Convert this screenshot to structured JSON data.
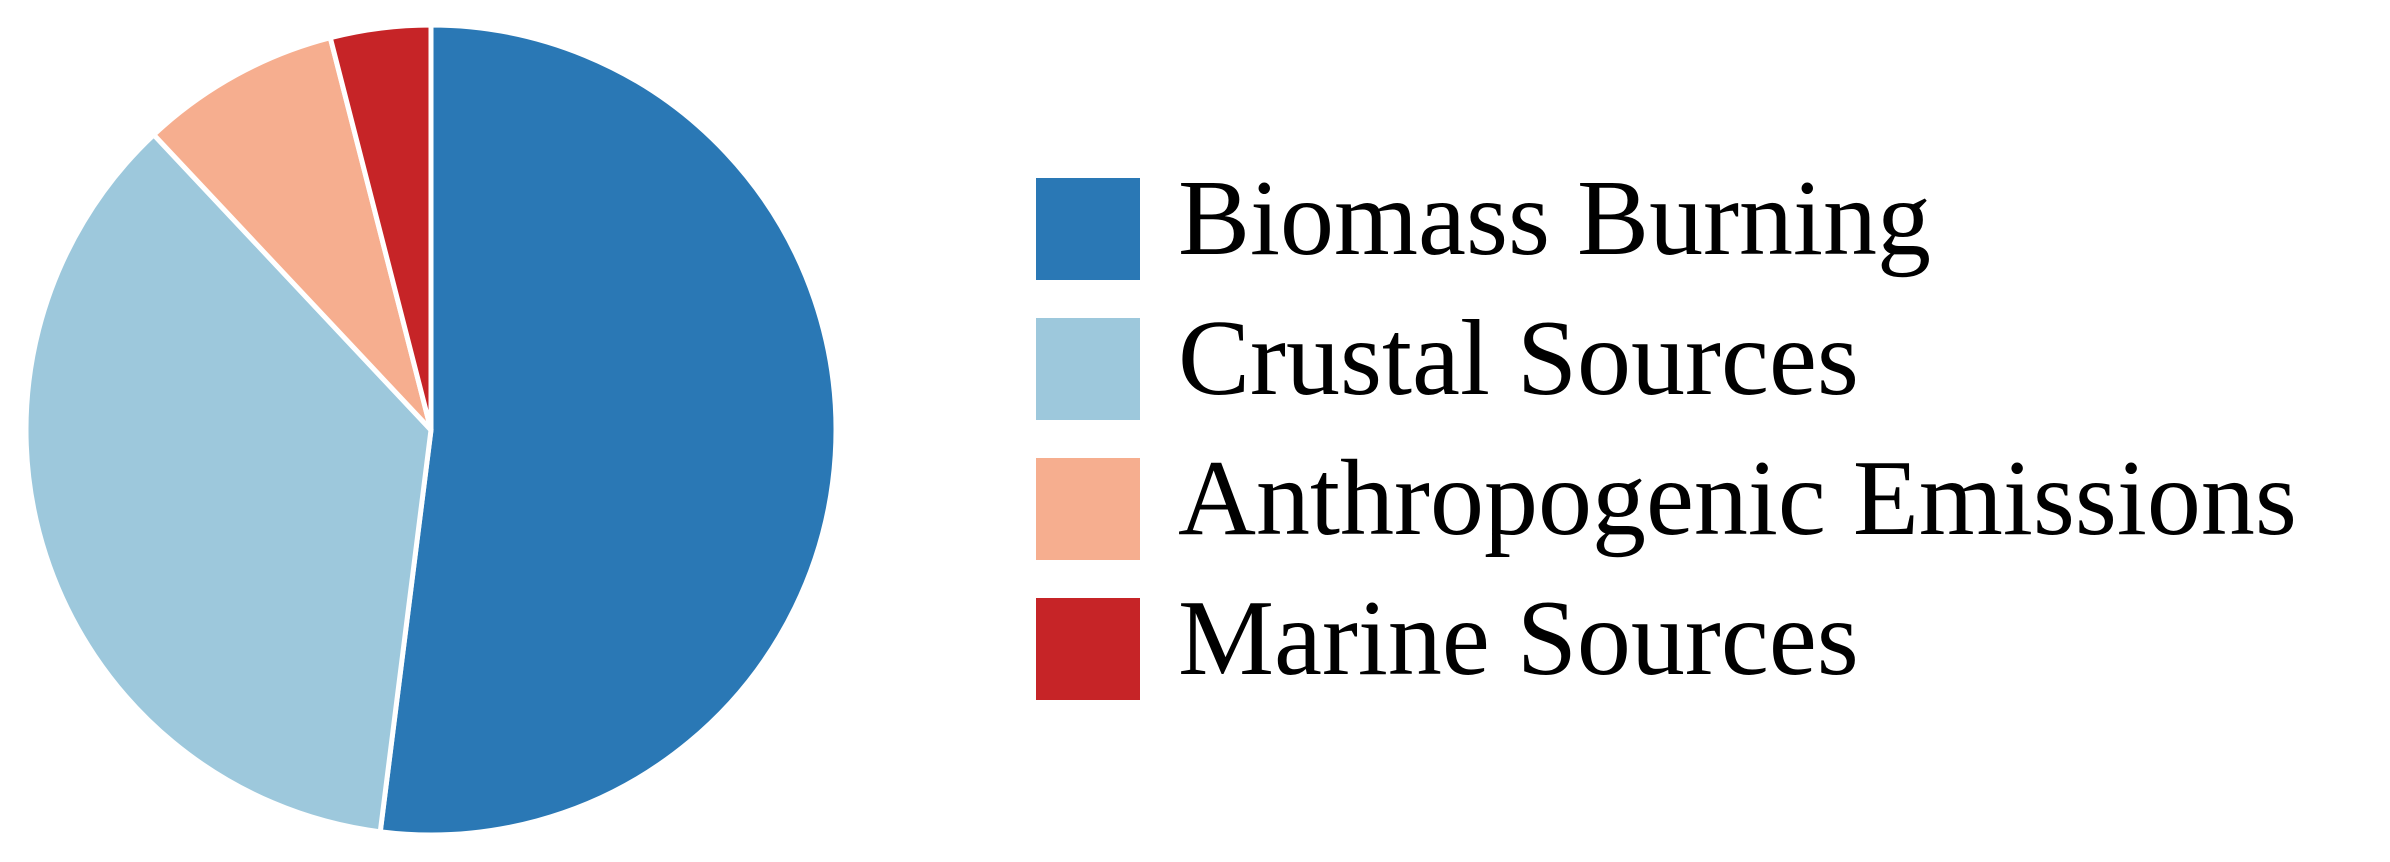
{
  "chart_data": {
    "type": "pie",
    "categories": [
      "Biomass Burning",
      "Crustal Sources",
      "Anthropogenic Emissions",
      "Marine Sources"
    ],
    "values": [
      52,
      36,
      8,
      4
    ],
    "colors": [
      "#2a78b5",
      "#9dc8dc",
      "#f6ae8f",
      "#c62427"
    ],
    "legend": "right"
  }
}
